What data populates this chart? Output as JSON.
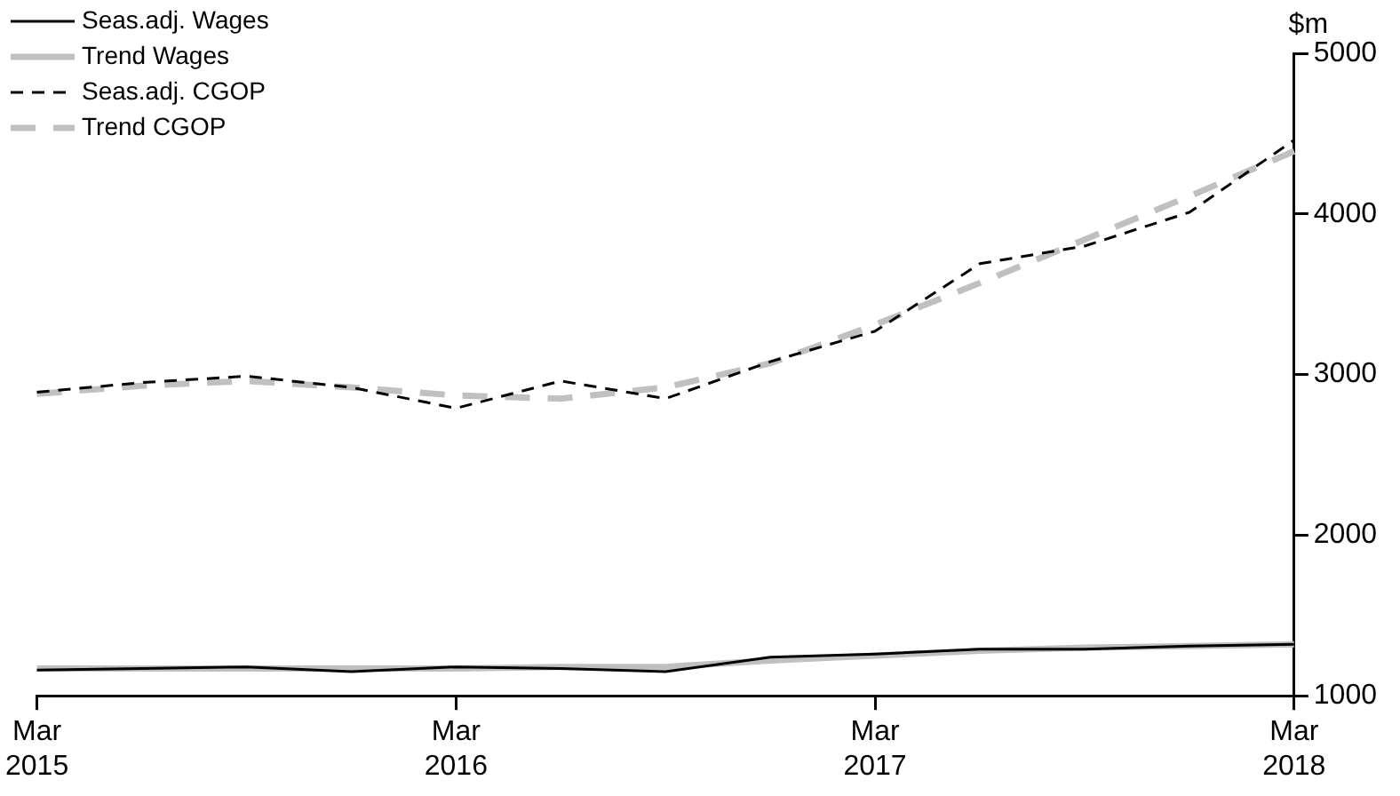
{
  "chart_data": {
    "type": "line",
    "ylabel": "$m",
    "categories": [
      "Mar 2015",
      null,
      null,
      null,
      "Mar 2016",
      null,
      null,
      null,
      "Mar 2017",
      null,
      null,
      null,
      "Mar 2018"
    ],
    "series": [
      {
        "name": "Seas.adj. Wages",
        "color": "#000000",
        "line_style": "solid",
        "values": [
          1160,
          1170,
          1180,
          1150,
          1180,
          1170,
          1150,
          1240,
          1260,
          1290,
          1290,
          1310,
          1320
        ]
      },
      {
        "name": "Trend Wages",
        "color": "#c0c0c0",
        "line_style": "solid",
        "values": [
          1170,
          1170,
          1170,
          1170,
          1170,
          1180,
          1180,
          1220,
          1250,
          1280,
          1300,
          1310,
          1320
        ]
      },
      {
        "name": "Seas.adj. CGOP",
        "color": "#000000",
        "line_style": "dashed",
        "values": [
          2890,
          2950,
          2990,
          2920,
          2790,
          2960,
          2850,
          3080,
          3270,
          3690,
          3800,
          4010,
          4460
        ]
      },
      {
        "name": "Trend CGOP",
        "color": "#c0c0c0",
        "line_style": "dashed",
        "values": [
          2880,
          2930,
          2960,
          2920,
          2870,
          2850,
          2920,
          3070,
          3310,
          3570,
          3840,
          4110,
          4390
        ]
      }
    ],
    "ylim": [
      1000,
      5000
    ],
    "yticks": [
      1000,
      2000,
      3000,
      4000,
      5000
    ],
    "grid": false,
    "legend": "top left",
    "marker": "none"
  }
}
